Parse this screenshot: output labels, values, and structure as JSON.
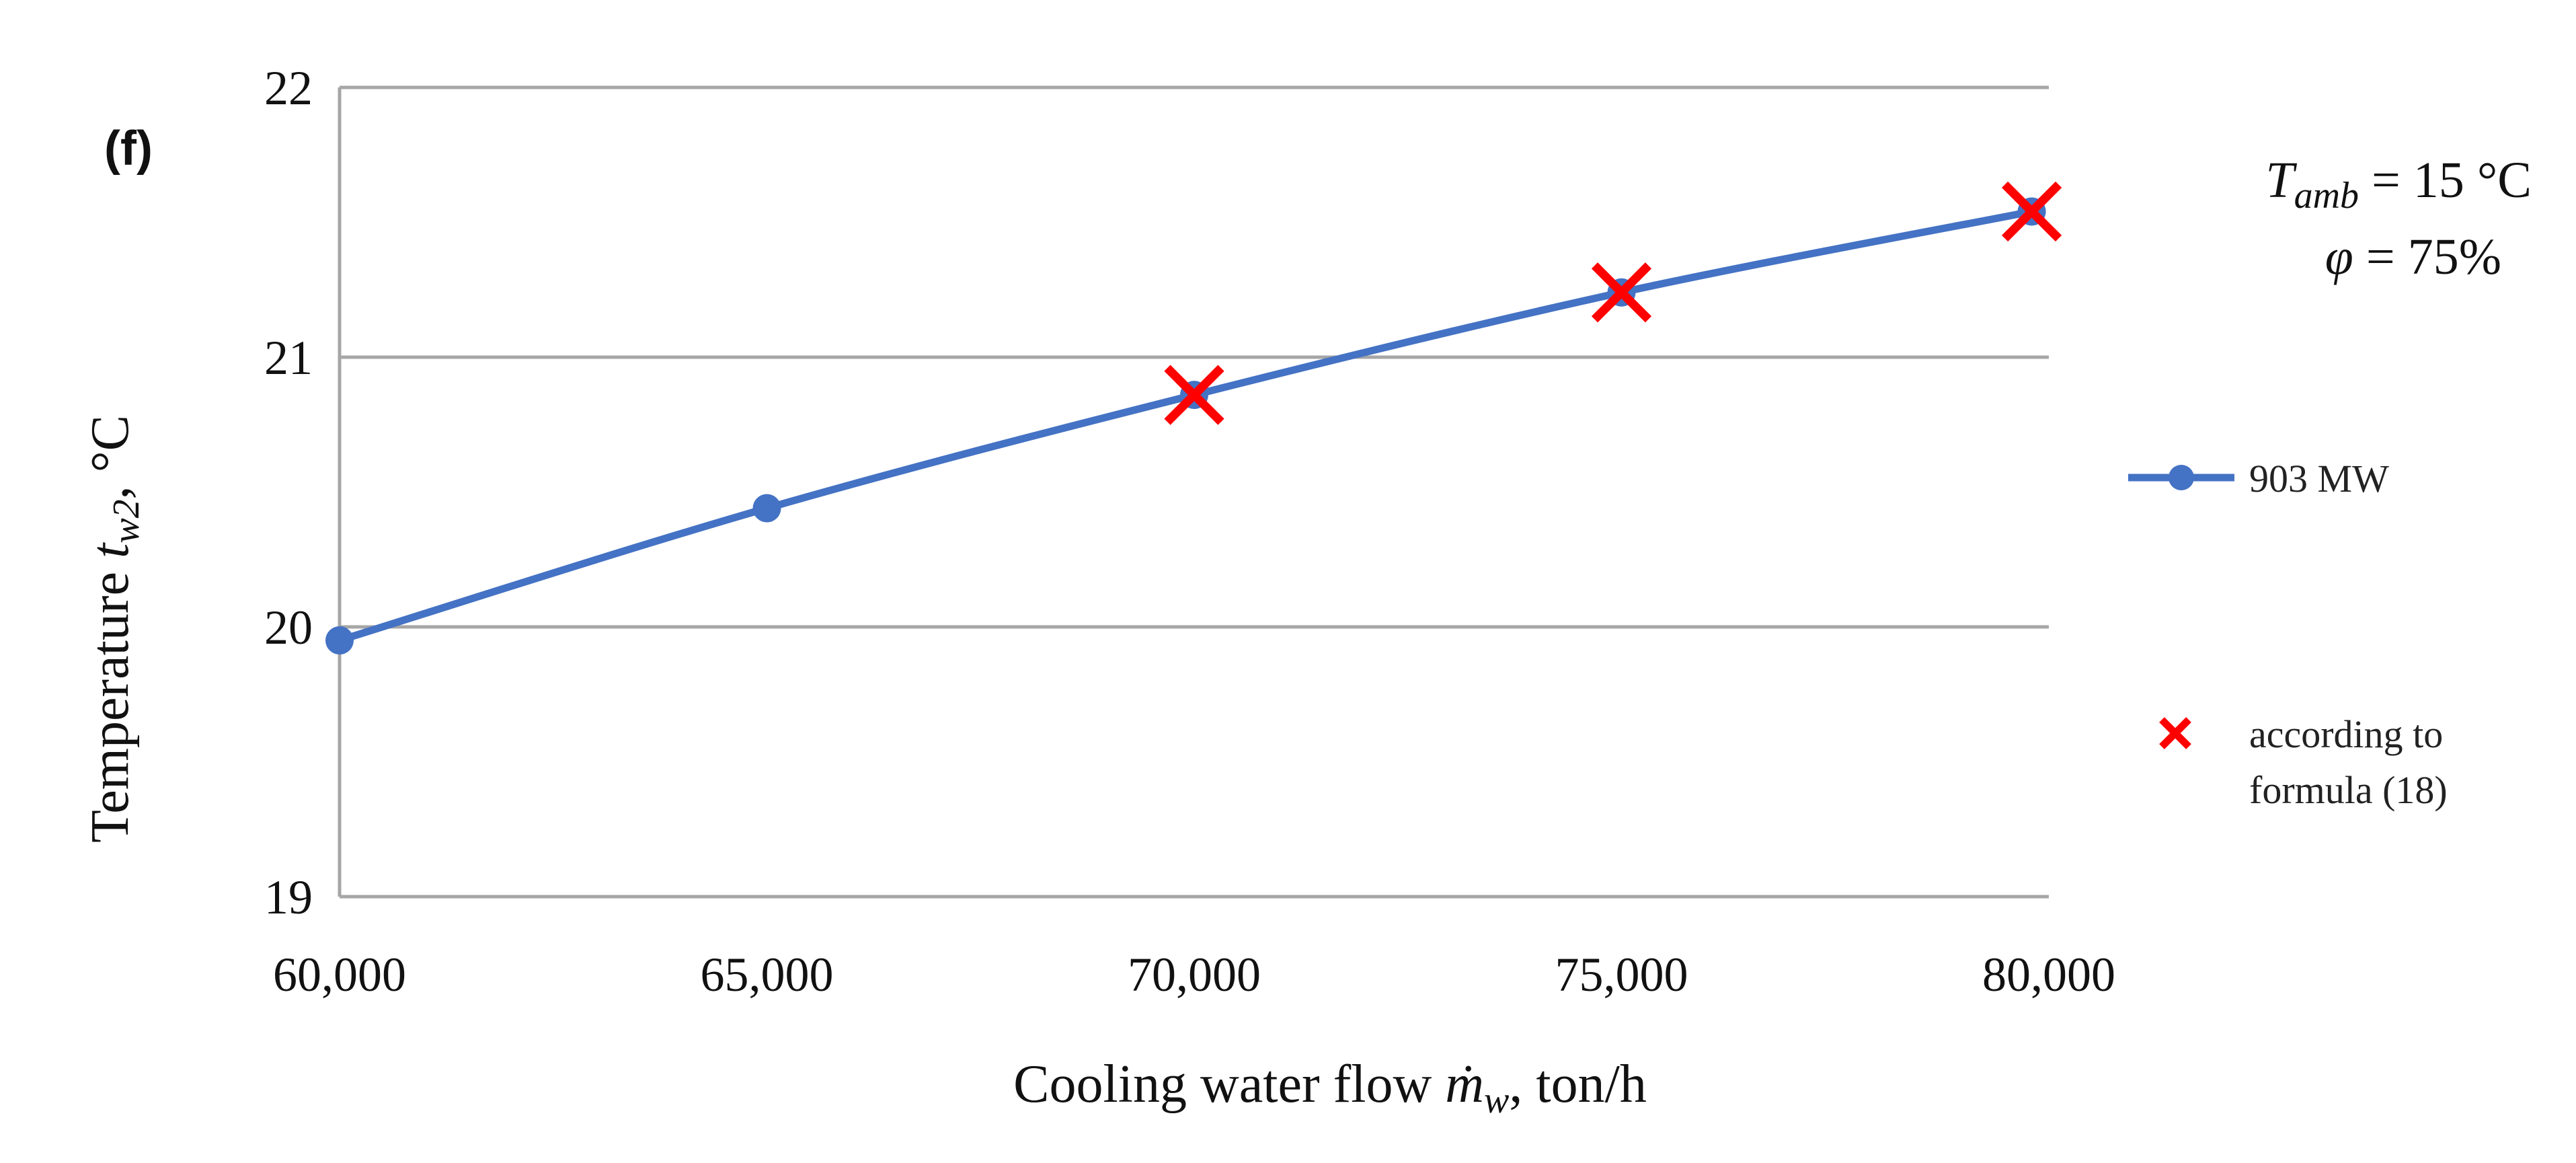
{
  "chart_data": {
    "type": "line",
    "panel_label": "(f)",
    "title": "",
    "xlabel": {
      "prefix": "Cooling water flow ",
      "symbol": "ṁ",
      "subscript": "w",
      "suffix": ", ton/h"
    },
    "ylabel": {
      "prefix": "Temperature ",
      "symbol": "t",
      "subscript": "w2",
      "suffix": ", °C"
    },
    "xlim": [
      60000,
      80000
    ],
    "ylim": [
      19,
      22
    ],
    "x_ticks": [
      60000,
      65000,
      70000,
      75000,
      80000
    ],
    "x_tick_labels": [
      "60,000",
      "65,000",
      "70,000",
      "75,000",
      "80,000"
    ],
    "y_ticks": [
      19,
      20,
      21,
      22
    ],
    "y_tick_labels": [
      "19",
      "20",
      "21",
      "22"
    ],
    "grid": true,
    "legend_position": "right",
    "series": [
      {
        "name": "903 MW",
        "kind": "line-marker",
        "color": "#4472c4",
        "x": [
          60000,
          65000,
          70000,
          75000,
          79800
        ],
        "y": [
          19.95,
          20.44,
          20.86,
          21.24,
          21.54
        ]
      },
      {
        "name": "according to formula (18)",
        "name_lines": [
          "according to",
          "formula (18)"
        ],
        "kind": "cross",
        "color": "#ff0000",
        "x": [
          70000,
          75000,
          79800
        ],
        "y": [
          20.86,
          21.24,
          21.54
        ]
      }
    ],
    "annotation": {
      "line1": {
        "symbol": "T",
        "subscript": "amb",
        "text": " = 15 °C"
      },
      "line2": {
        "symbol": "φ",
        "text": "  = 75%"
      }
    }
  }
}
